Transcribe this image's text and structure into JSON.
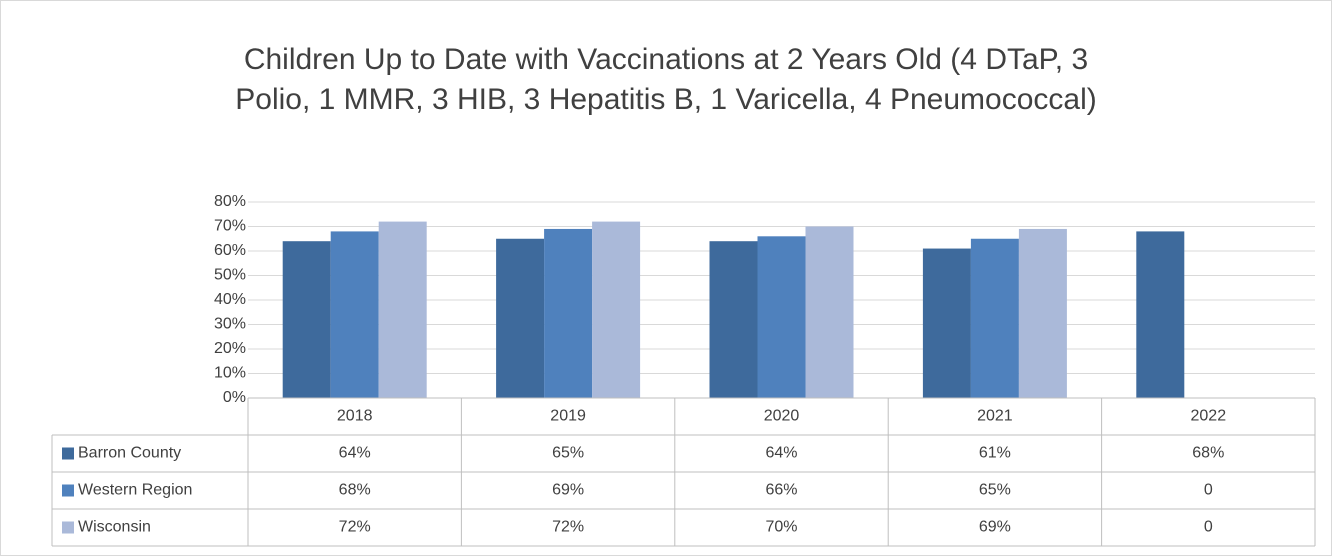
{
  "chart_data": {
    "type": "bar",
    "title": "Children Up to Date with Vaccinations at 2 Years Old (4 DTaP, 3 Polio, 1 MMR, 3 HIB, 3 Hepatitis B, 1 Varicella, 4 Pneumococcal)",
    "categories": [
      "2018",
      "2019",
      "2020",
      "2021",
      "2022"
    ],
    "series": [
      {
        "name": "Barron County",
        "color": "#3e6a9c",
        "values": [
          64,
          65,
          64,
          61,
          68
        ],
        "value_labels": [
          "64%",
          "65%",
          "64%",
          "61%",
          "68%"
        ]
      },
      {
        "name": "Western Region",
        "color": "#4f81bd",
        "values": [
          68,
          69,
          66,
          65,
          0
        ],
        "value_labels": [
          "68%",
          "69%",
          "66%",
          "65%",
          "0"
        ]
      },
      {
        "name": "Wisconsin",
        "color": "#aab9d9",
        "values": [
          72,
          72,
          70,
          69,
          0
        ],
        "value_labels": [
          "72%",
          "72%",
          "70%",
          "69%",
          "0"
        ]
      }
    ],
    "ylim": [
      0,
      80
    ],
    "yticks": [
      {
        "value": 0,
        "label": "0%"
      },
      {
        "value": 10,
        "label": "10%"
      },
      {
        "value": 20,
        "label": "20%"
      },
      {
        "value": 30,
        "label": "30%"
      },
      {
        "value": 40,
        "label": "40%"
      },
      {
        "value": 50,
        "label": "50%"
      },
      {
        "value": 60,
        "label": "60%"
      },
      {
        "value": 70,
        "label": "70%"
      },
      {
        "value": 80,
        "label": "80%"
      }
    ],
    "grid": true
  }
}
